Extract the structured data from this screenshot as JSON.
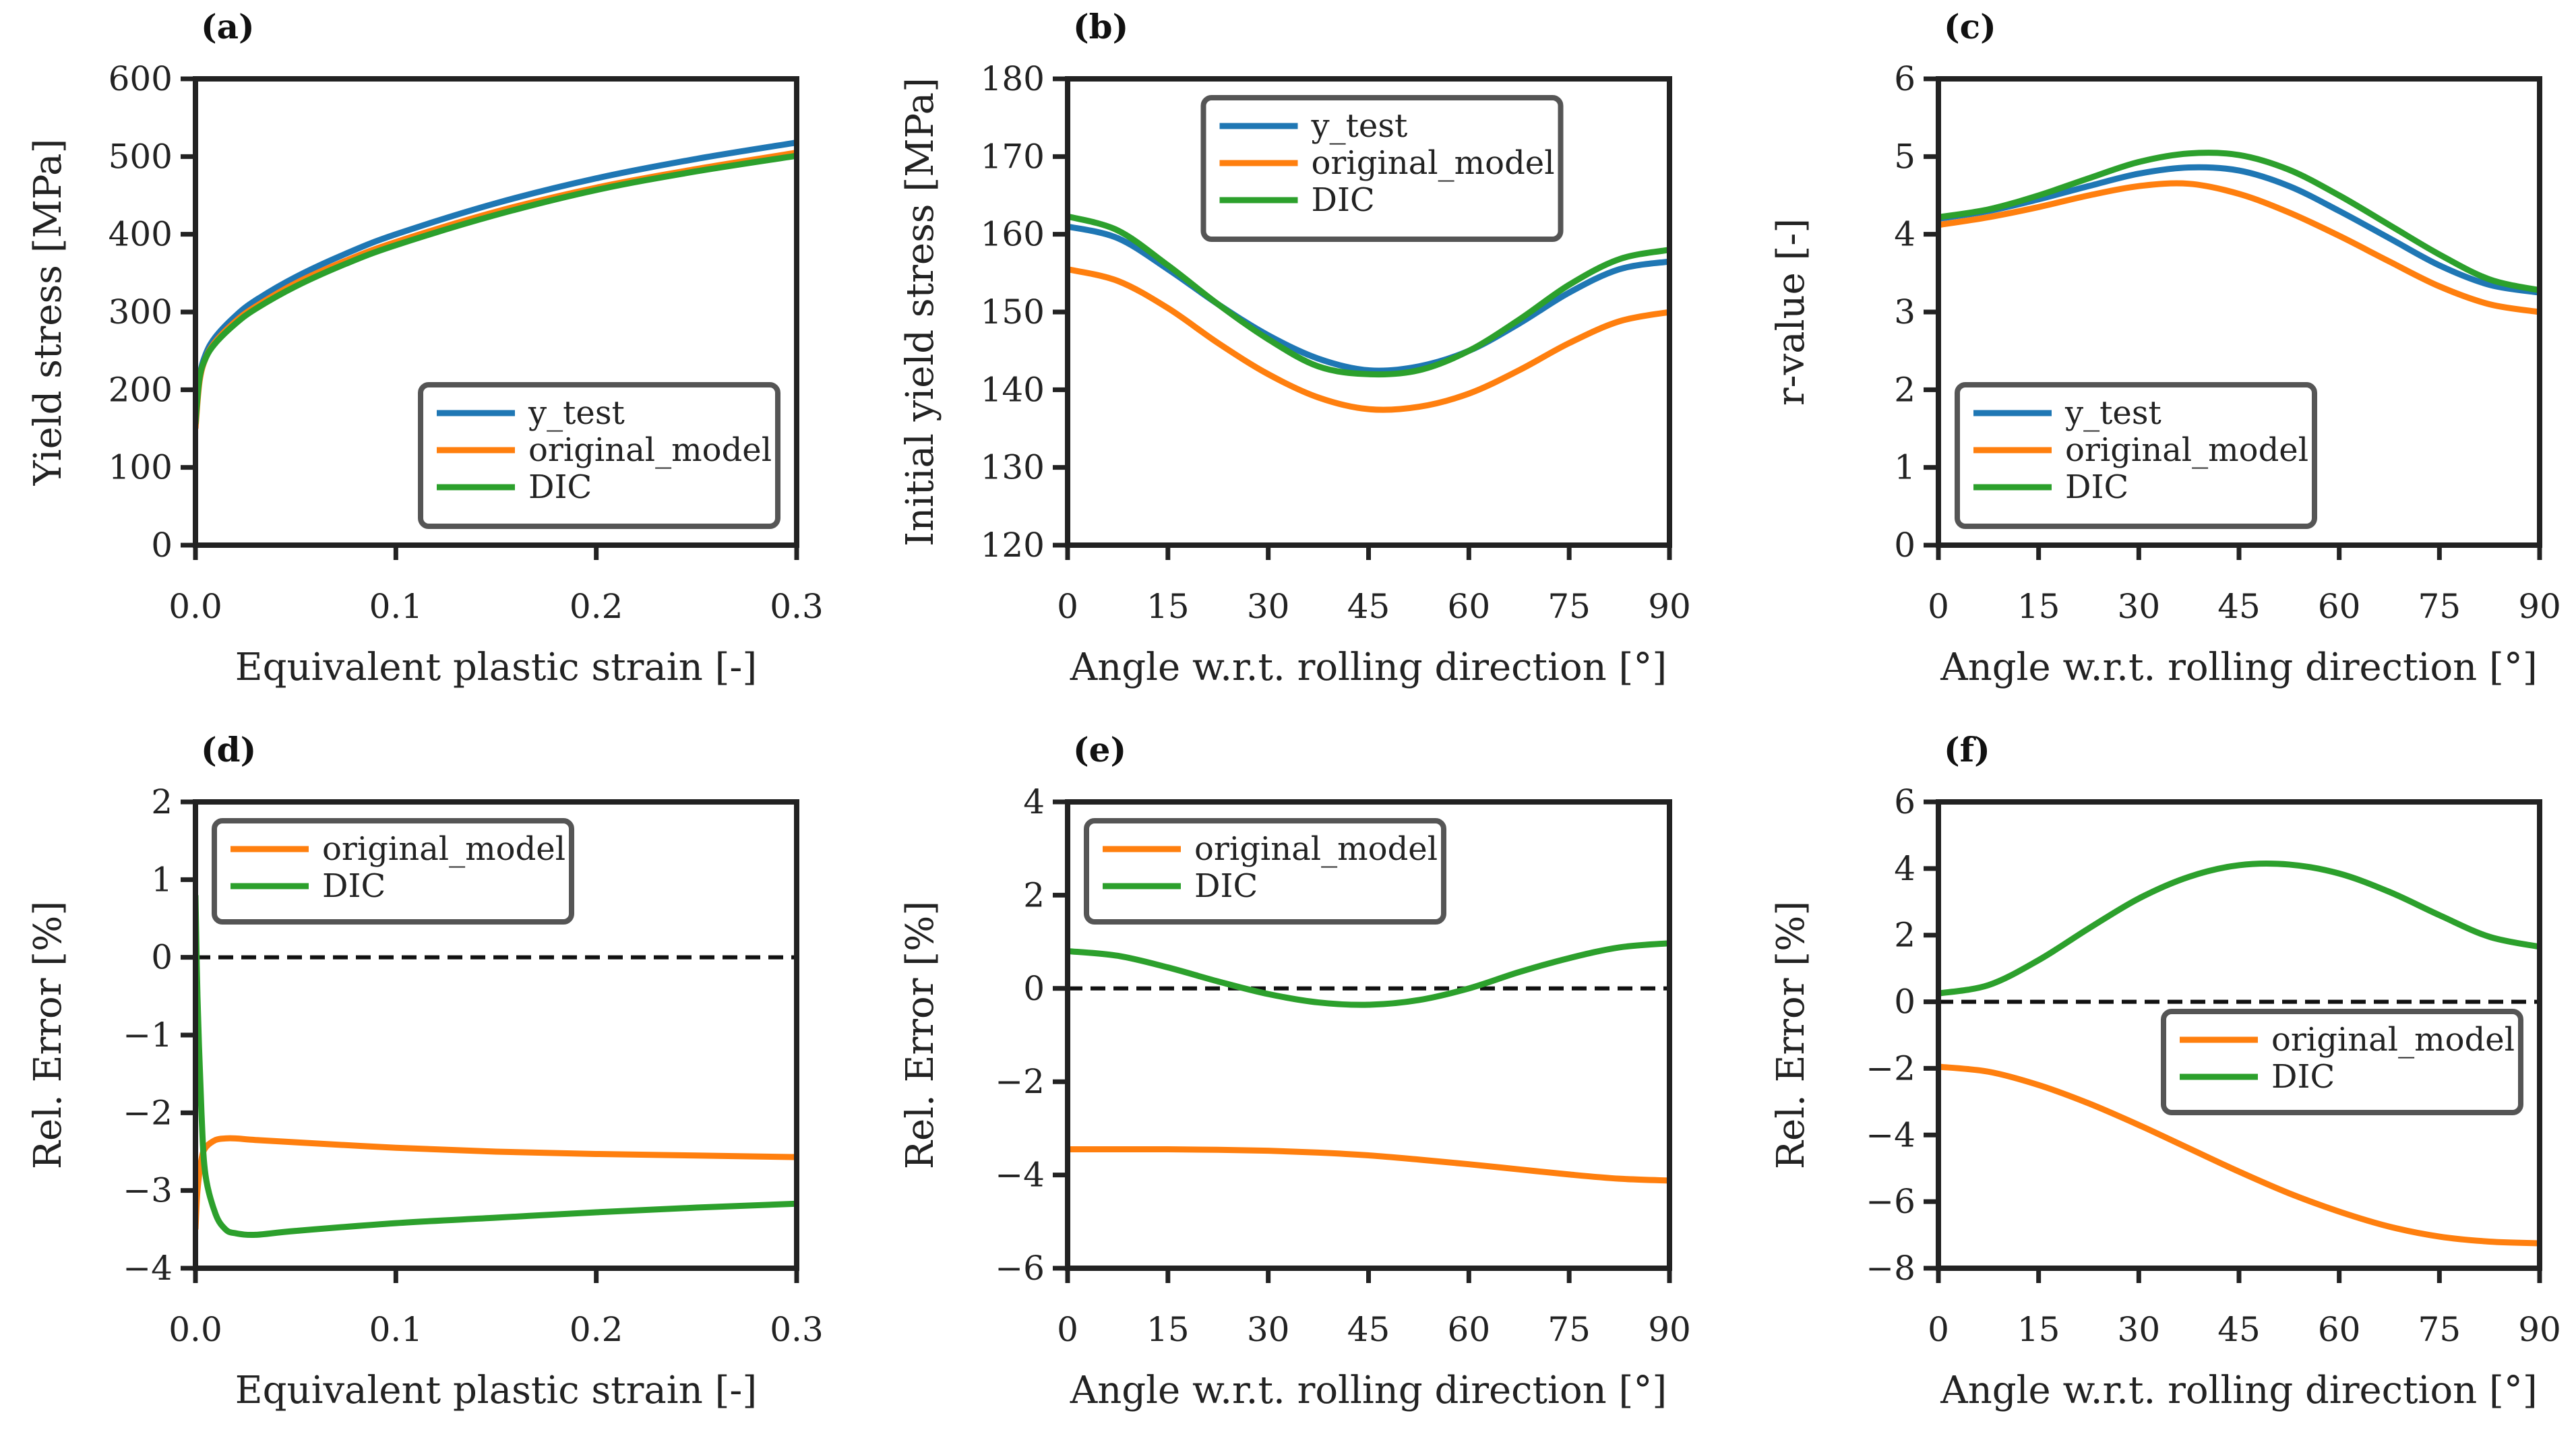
{
  "colors": {
    "y_test": "#1f77b4",
    "original_model": "#ff7f0e",
    "DIC": "#2ca02c",
    "axis": "#222222",
    "legend_border": "#555555"
  },
  "chart_data": [
    {
      "id": "a",
      "panel_label": "(a)",
      "type": "line",
      "xlabel": "Equivalent plastic strain [-]",
      "ylabel": "Yield stress [MPa]",
      "xlim": [
        0,
        0.3
      ],
      "ylim": [
        0,
        600
      ],
      "xticks": [
        0,
        0.1,
        0.2,
        0.3
      ],
      "xtick_labels": [
        "0.0",
        "0.1",
        "0.2",
        "0.3"
      ],
      "yticks": [
        0,
        100,
        200,
        300,
        400,
        500,
        600
      ],
      "ytick_labels": [
        "0",
        "100",
        "200",
        "300",
        "400",
        "500",
        "600"
      ],
      "legend": "lower-right",
      "zero_line": false,
      "x": [
        0,
        0.002,
        0.005,
        0.01,
        0.02,
        0.03,
        0.05,
        0.075,
        0.1,
        0.15,
        0.2,
        0.25,
        0.3
      ],
      "series": [
        {
          "name": "y_test",
          "values": [
            155,
            215,
            245,
            268,
            295,
            315,
            345,
            375,
            400,
            440,
            472,
            497,
            518
          ]
        },
        {
          "name": "original_model",
          "values": [
            150,
            210,
            240,
            262,
            288,
            307,
            337,
            366,
            390,
            429,
            460,
            484,
            505
          ]
        },
        {
          "name": "DIC",
          "values": [
            156,
            214,
            240,
            260,
            285,
            304,
            333,
            362,
            386,
            425,
            457,
            481,
            501
          ]
        }
      ]
    },
    {
      "id": "b",
      "panel_label": "(b)",
      "type": "line",
      "xlabel": "Angle w.r.t. rolling direction [°]",
      "ylabel": "Initial yield stress [MPa]",
      "xlim": [
        0,
        90
      ],
      "ylim": [
        120,
        180
      ],
      "xticks": [
        0,
        15,
        30,
        45,
        60,
        75,
        90
      ],
      "xtick_labels": [
        "0",
        "15",
        "30",
        "45",
        "60",
        "75",
        "90"
      ],
      "yticks": [
        120,
        130,
        140,
        150,
        160,
        170,
        180
      ],
      "ytick_labels": [
        "120",
        "130",
        "140",
        "150",
        "160",
        "170",
        "180"
      ],
      "legend": "upper-center",
      "zero_line": false,
      "x": [
        0,
        7.5,
        15,
        22.5,
        30,
        37.5,
        45,
        52.5,
        60,
        67.5,
        75,
        82.5,
        90
      ],
      "series": [
        {
          "name": "y_test",
          "values": [
            161,
            159.5,
            155.5,
            151,
            147,
            144,
            142.5,
            143,
            145,
            148.5,
            152.5,
            155.5,
            156.5
          ]
        },
        {
          "name": "original_model",
          "values": [
            155.5,
            154,
            150.5,
            146,
            142,
            139,
            137.5,
            137.8,
            139.5,
            142.5,
            146,
            148.8,
            150
          ]
        },
        {
          "name": "DIC",
          "values": [
            162.3,
            160.5,
            156,
            151,
            146.5,
            143,
            142,
            142.5,
            145,
            149,
            153.5,
            156.8,
            158
          ]
        }
      ]
    },
    {
      "id": "c",
      "panel_label": "(c)",
      "type": "line",
      "xlabel": "Angle w.r.t. rolling direction [°]",
      "ylabel": "r-value [-]",
      "xlim": [
        0,
        90
      ],
      "ylim": [
        0,
        6
      ],
      "xticks": [
        0,
        15,
        30,
        45,
        60,
        75,
        90
      ],
      "xtick_labels": [
        "0",
        "15",
        "30",
        "45",
        "60",
        "75",
        "90"
      ],
      "yticks": [
        0,
        1,
        2,
        3,
        4,
        5,
        6
      ],
      "ytick_labels": [
        "0",
        "1",
        "2",
        "3",
        "4",
        "5",
        "6"
      ],
      "legend": "lower-left",
      "zero_line": false,
      "x": [
        0,
        7.5,
        15,
        22.5,
        30,
        37.5,
        45,
        52.5,
        60,
        67.5,
        75,
        82.5,
        90
      ],
      "series": [
        {
          "name": "y_test",
          "values": [
            4.2,
            4.3,
            4.45,
            4.62,
            4.78,
            4.86,
            4.82,
            4.62,
            4.3,
            3.95,
            3.6,
            3.35,
            3.25
          ]
        },
        {
          "name": "original_model",
          "values": [
            4.12,
            4.22,
            4.35,
            4.5,
            4.62,
            4.65,
            4.52,
            4.28,
            3.98,
            3.65,
            3.33,
            3.1,
            3.0
          ]
        },
        {
          "name": "DIC",
          "values": [
            4.22,
            4.32,
            4.5,
            4.72,
            4.93,
            5.04,
            5.02,
            4.83,
            4.5,
            4.12,
            3.74,
            3.42,
            3.28
          ]
        }
      ]
    },
    {
      "id": "d",
      "panel_label": "(d)",
      "type": "line",
      "xlabel": "Equivalent plastic strain [-]",
      "ylabel": "Rel. Error [%]",
      "xlim": [
        0,
        0.3
      ],
      "ylim": [
        -4,
        2
      ],
      "xticks": [
        0,
        0.1,
        0.2,
        0.3
      ],
      "xtick_labels": [
        "0.0",
        "0.1",
        "0.2",
        "0.3"
      ],
      "yticks": [
        -4,
        -3,
        -2,
        -1,
        0,
        1,
        2
      ],
      "ytick_labels": [
        "−4",
        "−3",
        "−2",
        "−1",
        "0",
        "1",
        "2"
      ],
      "legend": "upper-left",
      "zero_line": true,
      "x": [
        0,
        0.001,
        0.003,
        0.005,
        0.01,
        0.015,
        0.02,
        0.03,
        0.05,
        0.1,
        0.15,
        0.2,
        0.25,
        0.3
      ],
      "series": [
        {
          "name": "original_model",
          "values": [
            -3.5,
            -3.0,
            -2.6,
            -2.45,
            -2.35,
            -2.33,
            -2.33,
            -2.35,
            -2.38,
            -2.45,
            -2.5,
            -2.53,
            -2.55,
            -2.57
          ]
        },
        {
          "name": "DIC",
          "values": [
            0.8,
            -0.5,
            -2.0,
            -2.8,
            -3.3,
            -3.5,
            -3.55,
            -3.57,
            -3.52,
            -3.42,
            -3.35,
            -3.28,
            -3.22,
            -3.17
          ]
        }
      ]
    },
    {
      "id": "e",
      "panel_label": "(e)",
      "type": "line",
      "xlabel": "Angle w.r.t. rolling direction [°]",
      "ylabel": "Rel. Error [%]",
      "xlim": [
        0,
        90
      ],
      "ylim": [
        -6,
        4
      ],
      "xticks": [
        0,
        15,
        30,
        45,
        60,
        75,
        90
      ],
      "xtick_labels": [
        "0",
        "15",
        "30",
        "45",
        "60",
        "75",
        "90"
      ],
      "yticks": [
        -6,
        -4,
        -2,
        0,
        2,
        4
      ],
      "ytick_labels": [
        "−6",
        "−4",
        "−2",
        "0",
        "2",
        "4"
      ],
      "legend": "upper-left",
      "zero_line": true,
      "x": [
        0,
        7.5,
        15,
        22.5,
        30,
        37.5,
        45,
        52.5,
        60,
        67.5,
        75,
        82.5,
        90
      ],
      "series": [
        {
          "name": "original_model",
          "values": [
            -3.45,
            -3.45,
            -3.45,
            -3.46,
            -3.48,
            -3.52,
            -3.58,
            -3.67,
            -3.77,
            -3.88,
            -3.99,
            -4.08,
            -4.12
          ]
        },
        {
          "name": "DIC",
          "values": [
            0.8,
            0.7,
            0.45,
            0.15,
            -0.12,
            -0.3,
            -0.35,
            -0.25,
            0,
            0.35,
            0.65,
            0.88,
            0.97
          ]
        }
      ]
    },
    {
      "id": "f",
      "panel_label": "(f)",
      "type": "line",
      "xlabel": "Angle w.r.t. rolling direction [°]",
      "ylabel": "Rel. Error [%]",
      "xlim": [
        0,
        90
      ],
      "ylim": [
        -8,
        6
      ],
      "xticks": [
        0,
        15,
        30,
        45,
        60,
        75,
        90
      ],
      "xtick_labels": [
        "0",
        "15",
        "30",
        "45",
        "60",
        "75",
        "90"
      ],
      "yticks": [
        -8,
        -6,
        -4,
        -2,
        0,
        2,
        4,
        6
      ],
      "ytick_labels": [
        "−8",
        "−6",
        "−4",
        "−2",
        "0",
        "2",
        "4",
        "6"
      ],
      "legend": "center-right",
      "zero_line": true,
      "x": [
        0,
        7.5,
        15,
        22.5,
        30,
        37.5,
        45,
        52.5,
        60,
        67.5,
        75,
        82.5,
        90
      ],
      "series": [
        {
          "name": "original_model",
          "values": [
            -1.95,
            -2.1,
            -2.5,
            -3.05,
            -3.7,
            -4.4,
            -5.1,
            -5.75,
            -6.3,
            -6.75,
            -7.05,
            -7.2,
            -7.25
          ]
        },
        {
          "name": "DIC",
          "values": [
            0.25,
            0.5,
            1.25,
            2.2,
            3.1,
            3.75,
            4.1,
            4.12,
            3.85,
            3.3,
            2.6,
            1.95,
            1.65
          ]
        }
      ]
    }
  ]
}
